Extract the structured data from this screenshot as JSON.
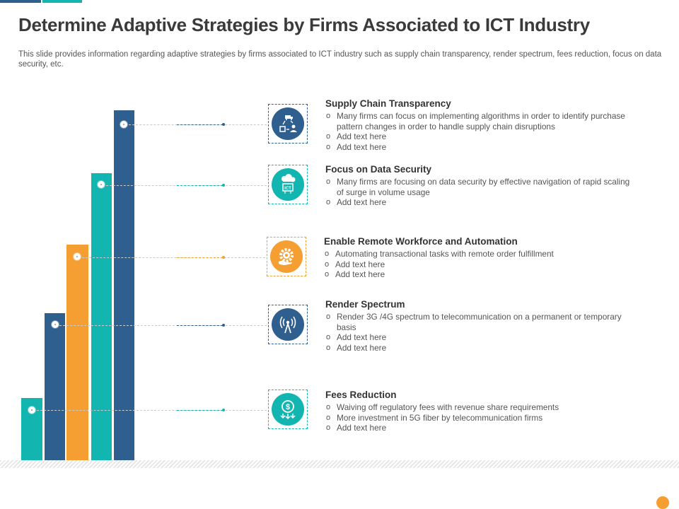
{
  "title": "Determine Adaptive Strategies by Firms Associated to ICT Industry",
  "description": "This slide provides information regarding adaptive strategies by firms associated to ICT industry such as supply chain transparency, render spectrum, fees reduction, focus on data security, etc.",
  "colors": {
    "blue": "#2f5f8f",
    "teal": "#13b5b1",
    "orange": "#f59f32"
  },
  "sections": [
    {
      "icon": "supply-chain-icon",
      "title": "Supply Chain Transparency",
      "bullets": [
        "Many firms can focus on implementing algorithms in order to identify purchase pattern changes in order to handle supply chain disruptions",
        "Add text here",
        "Add text here"
      ]
    },
    {
      "icon": "cloud-security-icon",
      "title": "Focus on Data Security",
      "bullets": [
        "Many firms are focusing on data security by effective navigation of rapid scaling of surge in volume usage",
        "Add text here"
      ]
    },
    {
      "icon": "automation-gear-icon",
      "title": "Enable Remote Workforce and Automation",
      "bullets": [
        "Automating transactional tasks with remote order fulfillment",
        "Add text here",
        "Add text here"
      ]
    },
    {
      "icon": "antenna-signal-icon",
      "title": "Render Spectrum",
      "bullets": [
        "Render 3G /4G spectrum to telecommunication on a permanent or temporary basis",
        "Add text here",
        "Add text here"
      ]
    },
    {
      "icon": "dollar-coin-icon",
      "title": "Fees Reduction",
      "bullets": [
        "Waiving off regulatory fees with revenue share requirements",
        "More investment in 5G fiber by telecommunication firms",
        "Add text here"
      ]
    }
  ]
}
